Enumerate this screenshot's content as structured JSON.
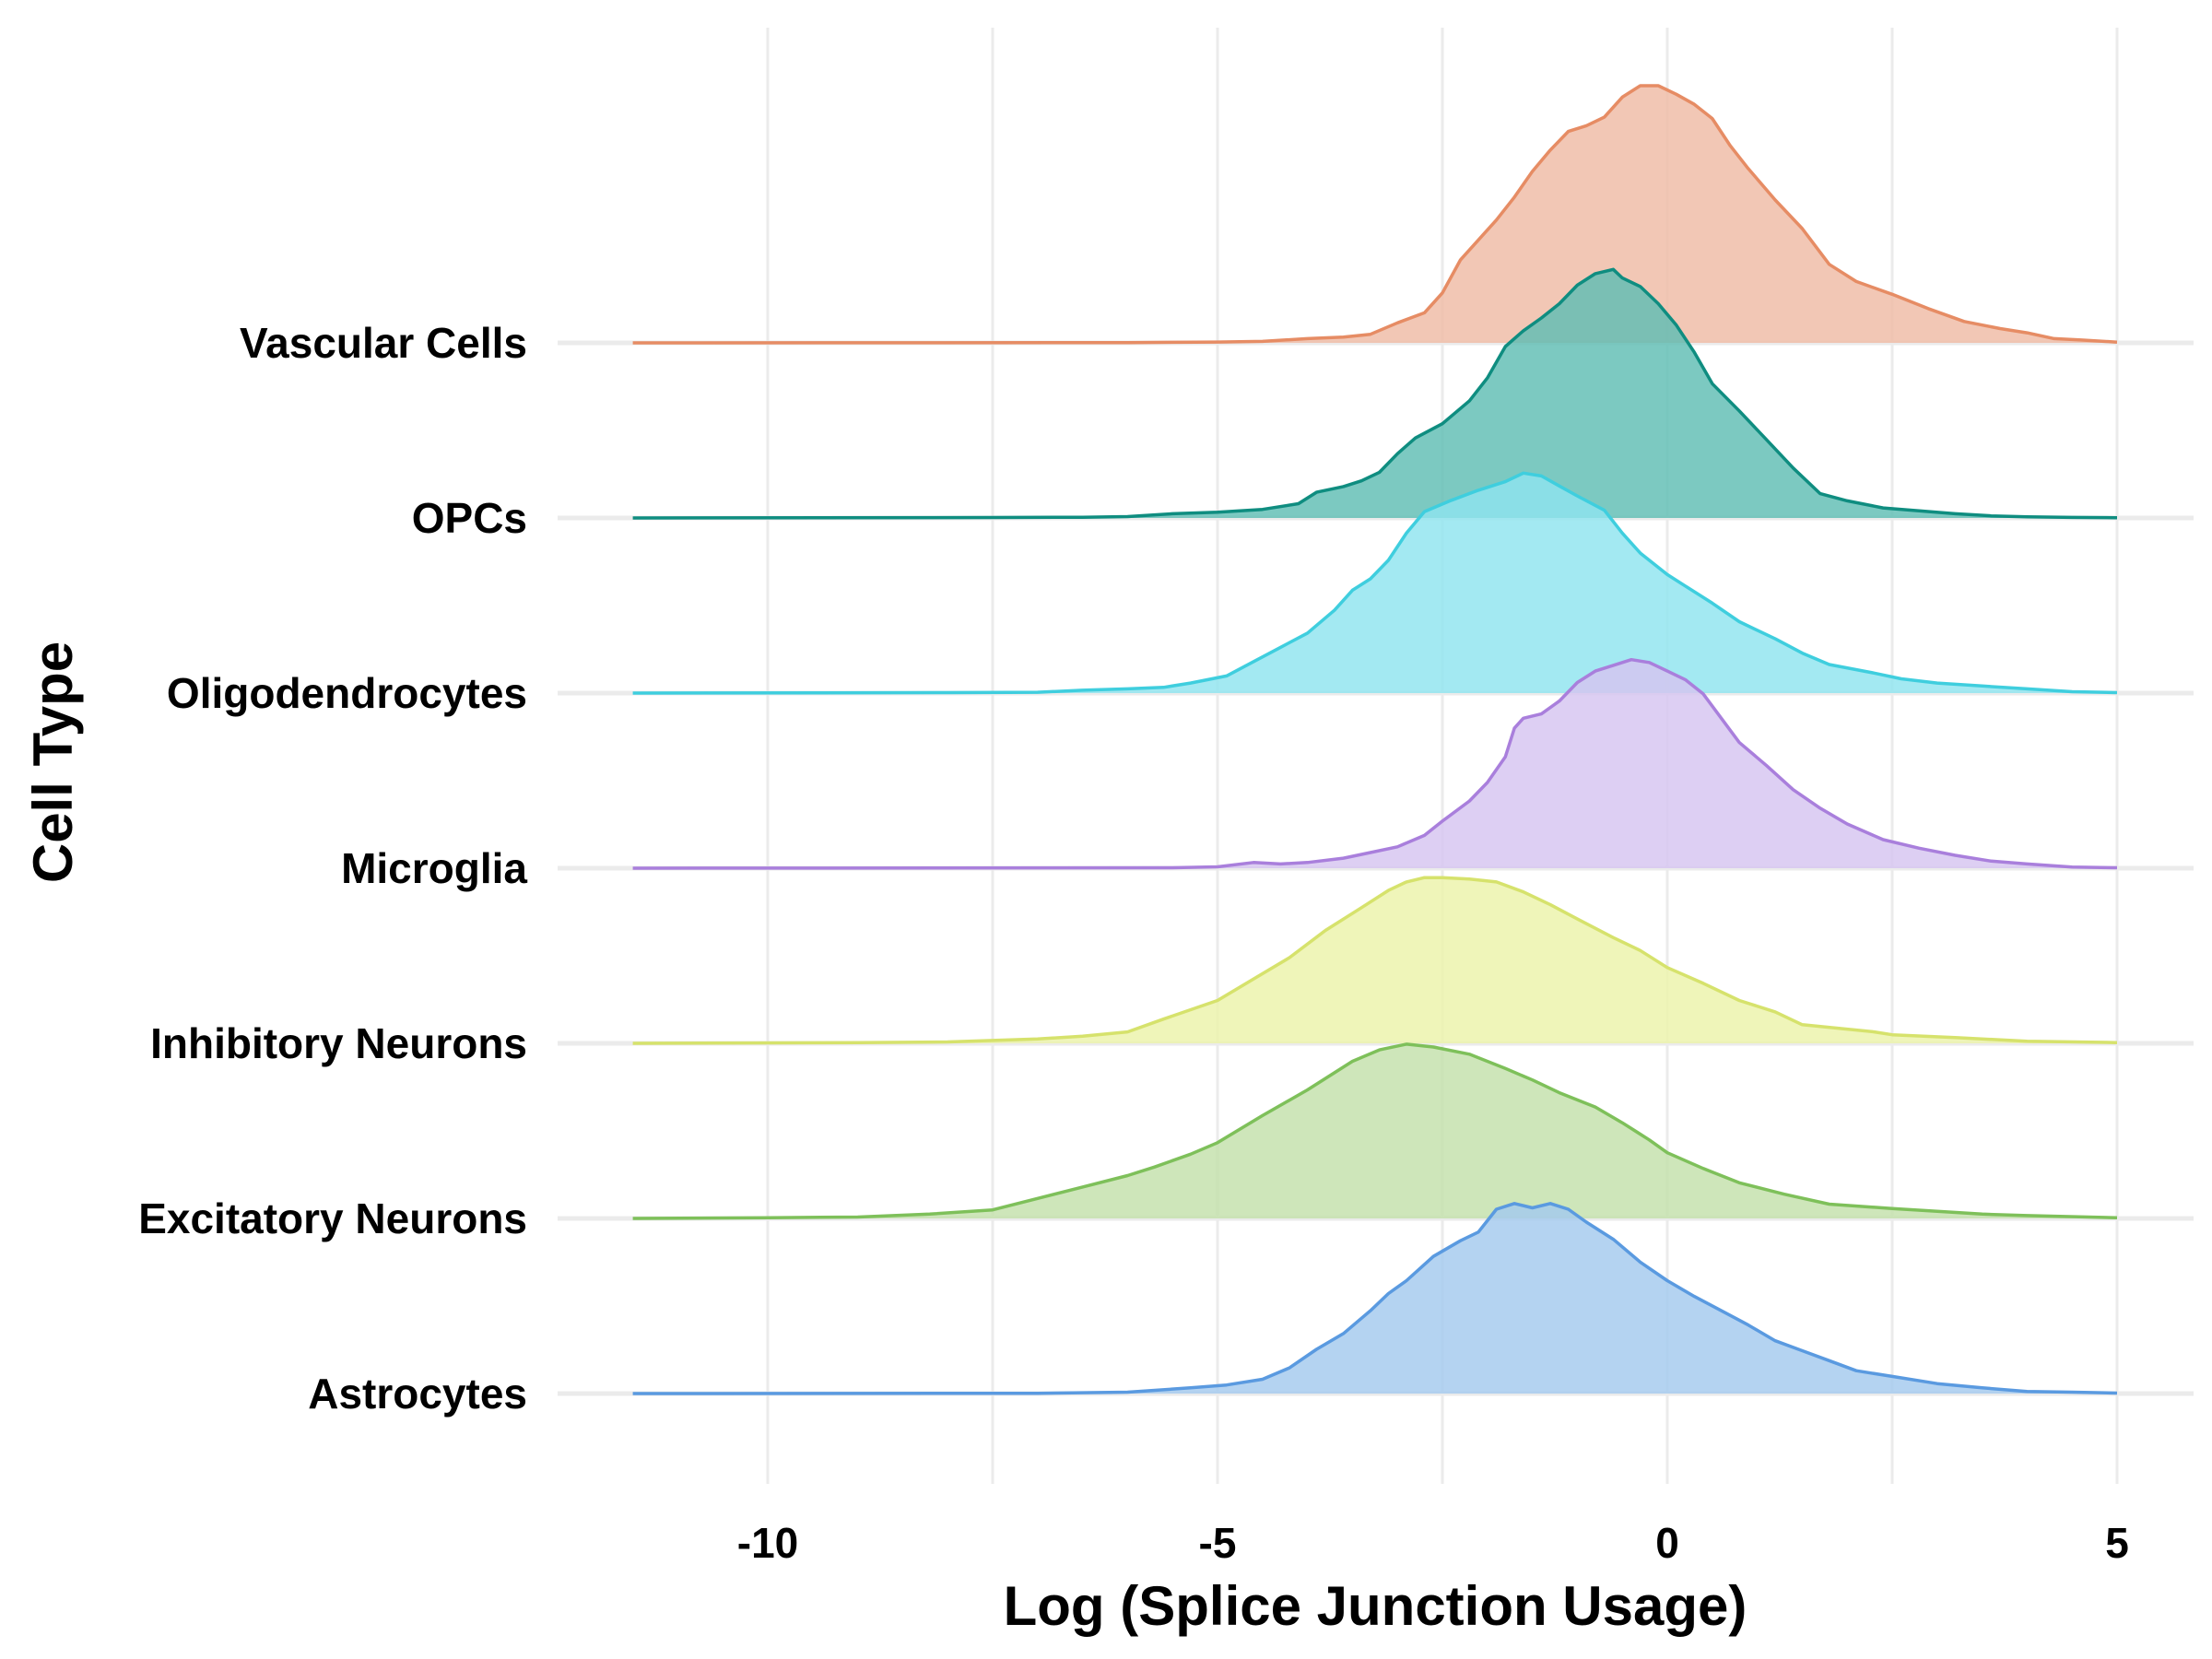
{
  "chart_data": {
    "type": "ridgeline",
    "xlabel": "Log (Splice Junction Usage)",
    "ylabel": "Cell Type",
    "xlim": [
      -11.5,
      5
    ],
    "x_ticks": [
      -10,
      -5,
      0,
      5
    ],
    "x_tick_labels": [
      "-10",
      "-5",
      "0",
      "5"
    ],
    "minor_gridlines": [
      -7.5,
      -2.5,
      2.5
    ],
    "grid": true,
    "legend": "none",
    "series": [
      {
        "name": "Astrocytes",
        "color": "#5a9ae0",
        "fill": "#a4c9ee",
        "density": [
          [
            -11.5,
            0
          ],
          [
            -7,
            0.002
          ],
          [
            -6,
            0.01
          ],
          [
            -5.3,
            0.04
          ],
          [
            -4.9,
            0.06
          ],
          [
            -4.5,
            0.1
          ],
          [
            -4.2,
            0.18
          ],
          [
            -3.9,
            0.31
          ],
          [
            -3.6,
            0.42
          ],
          [
            -3.3,
            0.58
          ],
          [
            -3.1,
            0.7
          ],
          [
            -2.9,
            0.79
          ],
          [
            -2.6,
            0.96
          ],
          [
            -2.3,
            1.07
          ],
          [
            -2.1,
            1.13
          ],
          [
            -1.9,
            1.29
          ],
          [
            -1.7,
            1.33
          ],
          [
            -1.5,
            1.3
          ],
          [
            -1.3,
            1.33
          ],
          [
            -1.1,
            1.29
          ],
          [
            -0.9,
            1.2
          ],
          [
            -0.6,
            1.08
          ],
          [
            -0.3,
            0.92
          ],
          [
            0,
            0.79
          ],
          [
            0.3,
            0.68
          ],
          [
            0.6,
            0.58
          ],
          [
            0.9,
            0.48
          ],
          [
            1.2,
            0.37
          ],
          [
            1.5,
            0.3
          ],
          [
            1.8,
            0.23
          ],
          [
            2.1,
            0.16
          ],
          [
            2.5,
            0.12
          ],
          [
            3,
            0.07
          ],
          [
            3.5,
            0.04
          ],
          [
            4,
            0.015
          ],
          [
            4.5,
            0.01
          ],
          [
            5,
            0.003
          ]
        ]
      },
      {
        "name": "Excitatory Neurons",
        "color": "#7ec05a",
        "fill": "#c3e1ab",
        "density": [
          [
            -11.5,
            0
          ],
          [
            -10,
            0.005
          ],
          [
            -9,
            0.01
          ],
          [
            -8.2,
            0.03
          ],
          [
            -7.5,
            0.06
          ],
          [
            -7,
            0.14
          ],
          [
            -6.5,
            0.22
          ],
          [
            -6,
            0.3
          ],
          [
            -5.7,
            0.36
          ],
          [
            -5.3,
            0.45
          ],
          [
            -5,
            0.53
          ],
          [
            -4.5,
            0.72
          ],
          [
            -4,
            0.9
          ],
          [
            -3.5,
            1.1
          ],
          [
            -3.2,
            1.18
          ],
          [
            -2.9,
            1.22
          ],
          [
            -2.6,
            1.2
          ],
          [
            -2.2,
            1.15
          ],
          [
            -1.8,
            1.05
          ],
          [
            -1.5,
            0.97
          ],
          [
            -1.2,
            0.88
          ],
          [
            -0.8,
            0.78
          ],
          [
            -0.5,
            0.67
          ],
          [
            -0.2,
            0.55
          ],
          [
            0,
            0.46
          ],
          [
            0.4,
            0.35
          ],
          [
            0.8,
            0.25
          ],
          [
            1.3,
            0.17
          ],
          [
            1.8,
            0.1
          ],
          [
            2.5,
            0.07
          ],
          [
            3,
            0.05
          ],
          [
            3.5,
            0.03
          ],
          [
            4,
            0.02
          ],
          [
            5,
            0.005
          ]
        ]
      },
      {
        "name": "Inhibitory Neurons",
        "color": "#d6e26c",
        "fill": "#ecf3a9",
        "density": [
          [
            -11.5,
            0
          ],
          [
            -9,
            0.005
          ],
          [
            -8,
            0.01
          ],
          [
            -7.5,
            0.02
          ],
          [
            -7,
            0.03
          ],
          [
            -6.5,
            0.05
          ],
          [
            -6,
            0.08
          ],
          [
            -5.6,
            0.17
          ],
          [
            -5,
            0.3
          ],
          [
            -4.6,
            0.45
          ],
          [
            -4.2,
            0.6
          ],
          [
            -3.8,
            0.79
          ],
          [
            -3.4,
            0.95
          ],
          [
            -3.1,
            1.07
          ],
          [
            -2.9,
            1.13
          ],
          [
            -2.7,
            1.16
          ],
          [
            -2.5,
            1.16
          ],
          [
            -2.2,
            1.15
          ],
          [
            -1.9,
            1.13
          ],
          [
            -1.6,
            1.06
          ],
          [
            -1.3,
            0.97
          ],
          [
            -1,
            0.87
          ],
          [
            -0.6,
            0.74
          ],
          [
            -0.3,
            0.65
          ],
          [
            0,
            0.53
          ],
          [
            0.4,
            0.42
          ],
          [
            0.8,
            0.3
          ],
          [
            1.2,
            0.22
          ],
          [
            1.5,
            0.13
          ],
          [
            2.3,
            0.08
          ],
          [
            2.5,
            0.06
          ],
          [
            3.2,
            0.04
          ],
          [
            4,
            0.015
          ],
          [
            5,
            0.005
          ]
        ]
      },
      {
        "name": "Microglia",
        "color": "#a97fdc",
        "fill": "#d6c4f0",
        "density": [
          [
            -11.5,
            0
          ],
          [
            -5.5,
            0.003
          ],
          [
            -5,
            0.01
          ],
          [
            -4.6,
            0.04
          ],
          [
            -4.3,
            0.03
          ],
          [
            -4,
            0.04
          ],
          [
            -3.6,
            0.07
          ],
          [
            -3.3,
            0.11
          ],
          [
            -3,
            0.15
          ],
          [
            -2.7,
            0.23
          ],
          [
            -2.5,
            0.33
          ],
          [
            -2.2,
            0.47
          ],
          [
            -2,
            0.6
          ],
          [
            -1.8,
            0.78
          ],
          [
            -1.7,
            0.98
          ],
          [
            -1.6,
            1.05
          ],
          [
            -1.4,
            1.08
          ],
          [
            -1.2,
            1.17
          ],
          [
            -1,
            1.3
          ],
          [
            -0.8,
            1.38
          ],
          [
            -0.6,
            1.42
          ],
          [
            -0.4,
            1.46
          ],
          [
            -0.2,
            1.44
          ],
          [
            0,
            1.38
          ],
          [
            0.2,
            1.32
          ],
          [
            0.4,
            1.22
          ],
          [
            0.6,
            1.05
          ],
          [
            0.8,
            0.88
          ],
          [
            1.1,
            0.72
          ],
          [
            1.4,
            0.55
          ],
          [
            1.7,
            0.42
          ],
          [
            2,
            0.31
          ],
          [
            2.4,
            0.2
          ],
          [
            2.8,
            0.14
          ],
          [
            3.2,
            0.09
          ],
          [
            3.6,
            0.05
          ],
          [
            4,
            0.03
          ],
          [
            4.5,
            0.008
          ],
          [
            5,
            0.003
          ]
        ]
      },
      {
        "name": "Oligodendrocytes",
        "color": "#3fcede",
        "fill": "#8fe4ef",
        "density": [
          [
            -11.5,
            0
          ],
          [
            -8,
            0.003
          ],
          [
            -7,
            0.006
          ],
          [
            -6.5,
            0.02
          ],
          [
            -6,
            0.03
          ],
          [
            -5.6,
            0.04
          ],
          [
            -5.3,
            0.07
          ],
          [
            -4.9,
            0.12
          ],
          [
            -4.6,
            0.22
          ],
          [
            -4.3,
            0.32
          ],
          [
            -4,
            0.42
          ],
          [
            -3.7,
            0.58
          ],
          [
            -3.5,
            0.72
          ],
          [
            -3.3,
            0.8
          ],
          [
            -3.1,
            0.93
          ],
          [
            -2.9,
            1.12
          ],
          [
            -2.7,
            1.27
          ],
          [
            -2.4,
            1.35
          ],
          [
            -2.1,
            1.42
          ],
          [
            -1.8,
            1.48
          ],
          [
            -1.6,
            1.54
          ],
          [
            -1.4,
            1.52
          ],
          [
            -1.2,
            1.45
          ],
          [
            -1,
            1.38
          ],
          [
            -0.7,
            1.28
          ],
          [
            -0.5,
            1.12
          ],
          [
            -0.3,
            0.98
          ],
          [
            0,
            0.83
          ],
          [
            0.2,
            0.75
          ],
          [
            0.5,
            0.63
          ],
          [
            0.8,
            0.5
          ],
          [
            1.2,
            0.38
          ],
          [
            1.5,
            0.28
          ],
          [
            1.8,
            0.2
          ],
          [
            2.3,
            0.14
          ],
          [
            2.6,
            0.1
          ],
          [
            3,
            0.07
          ],
          [
            3.5,
            0.05
          ],
          [
            4,
            0.03
          ],
          [
            4.5,
            0.01
          ],
          [
            5,
            0.003
          ]
        ]
      },
      {
        "name": "OPCs",
        "color": "#0f8d80",
        "fill": "#5fbdb3",
        "density": [
          [
            -11.5,
            0
          ],
          [
            -7.5,
            0.003
          ],
          [
            -6.5,
            0.005
          ],
          [
            -6,
            0.01
          ],
          [
            -5.5,
            0.03
          ],
          [
            -5,
            0.04
          ],
          [
            -4.5,
            0.06
          ],
          [
            -4.1,
            0.1
          ],
          [
            -3.9,
            0.18
          ],
          [
            -3.6,
            0.22
          ],
          [
            -3.4,
            0.26
          ],
          [
            -3.2,
            0.32
          ],
          [
            -3,
            0.45
          ],
          [
            -2.8,
            0.56
          ],
          [
            -2.5,
            0.66
          ],
          [
            -2.2,
            0.82
          ],
          [
            -2,
            0.98
          ],
          [
            -1.8,
            1.2
          ],
          [
            -1.6,
            1.31
          ],
          [
            -1.4,
            1.4
          ],
          [
            -1.2,
            1.5
          ],
          [
            -1,
            1.63
          ],
          [
            -0.8,
            1.71
          ],
          [
            -0.6,
            1.74
          ],
          [
            -0.5,
            1.68
          ],
          [
            -0.3,
            1.62
          ],
          [
            -0.1,
            1.5
          ],
          [
            0.1,
            1.35
          ],
          [
            0.3,
            1.16
          ],
          [
            0.5,
            0.94
          ],
          [
            0.8,
            0.75
          ],
          [
            1.1,
            0.55
          ],
          [
            1.4,
            0.35
          ],
          [
            1.7,
            0.17
          ],
          [
            2,
            0.12
          ],
          [
            2.4,
            0.07
          ],
          [
            2.8,
            0.05
          ],
          [
            3.2,
            0.03
          ],
          [
            3.6,
            0.015
          ],
          [
            4,
            0.008
          ],
          [
            4.5,
            0.004
          ],
          [
            5,
            0.002
          ]
        ]
      },
      {
        "name": "Vascular Cells",
        "color": "#e68c64",
        "fill": "#efbba5",
        "density": [
          [
            -11.5,
            0
          ],
          [
            -6,
            0.002
          ],
          [
            -5.5,
            0.004
          ],
          [
            -5,
            0.006
          ],
          [
            -4.5,
            0.01
          ],
          [
            -4,
            0.03
          ],
          [
            -3.6,
            0.04
          ],
          [
            -3.3,
            0.06
          ],
          [
            -3,
            0.14
          ],
          [
            -2.7,
            0.21
          ],
          [
            -2.5,
            0.35
          ],
          [
            -2.3,
            0.58
          ],
          [
            -2.1,
            0.72
          ],
          [
            -1.9,
            0.86
          ],
          [
            -1.7,
            1.02
          ],
          [
            -1.5,
            1.2
          ],
          [
            -1.3,
            1.35
          ],
          [
            -1.1,
            1.48
          ],
          [
            -0.9,
            1.52
          ],
          [
            -0.7,
            1.58
          ],
          [
            -0.5,
            1.72
          ],
          [
            -0.3,
            1.8
          ],
          [
            -0.1,
            1.8
          ],
          [
            0.1,
            1.74
          ],
          [
            0.3,
            1.67
          ],
          [
            0.5,
            1.57
          ],
          [
            0.7,
            1.38
          ],
          [
            0.9,
            1.22
          ],
          [
            1.2,
            1
          ],
          [
            1.5,
            0.8
          ],
          [
            1.8,
            0.55
          ],
          [
            2.1,
            0.43
          ],
          [
            2.5,
            0.34
          ],
          [
            2.9,
            0.24
          ],
          [
            3.3,
            0.15
          ],
          [
            3.7,
            0.1
          ],
          [
            4,
            0.07
          ],
          [
            4.3,
            0.03
          ],
          [
            4.6,
            0.02
          ],
          [
            5,
            0.005
          ]
        ]
      }
    ]
  }
}
